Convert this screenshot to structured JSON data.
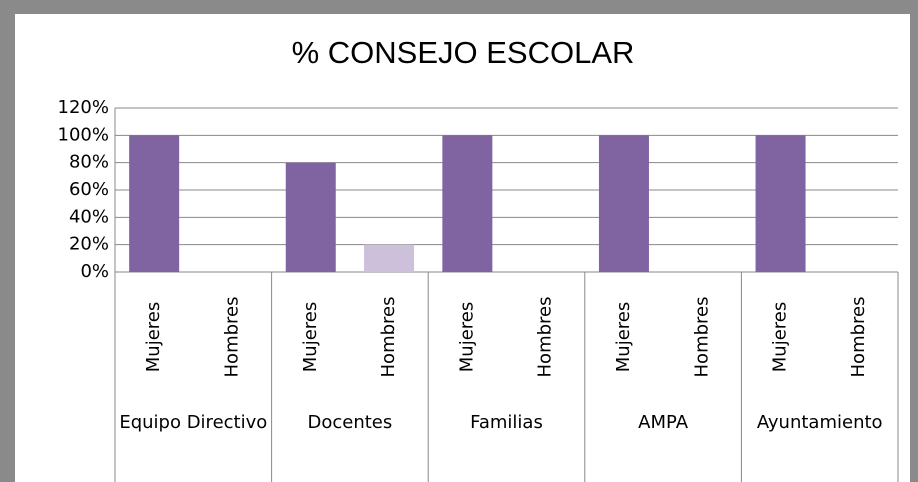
{
  "chart_data": {
    "type": "bar",
    "title": "% CONSEJO ESCOLAR",
    "groups": [
      {
        "name": "Equipo Directivo",
        "categories": [
          "Mujeres",
          "Hombres"
        ],
        "values": [
          100,
          0
        ]
      },
      {
        "name": "Docentes",
        "categories": [
          "Mujeres",
          "Hombres"
        ],
        "values": [
          80,
          20
        ]
      },
      {
        "name": "Familias",
        "categories": [
          "Mujeres",
          "Hombres"
        ],
        "values": [
          100,
          0
        ]
      },
      {
        "name": "AMPA",
        "categories": [
          "Mujeres",
          "Hombres"
        ],
        "values": [
          100,
          0
        ]
      },
      {
        "name": "Ayuntamiento",
        "categories": [
          "Mujeres",
          "Hombres"
        ],
        "values": [
          100,
          0
        ]
      }
    ],
    "colors": [
      "#8064a2",
      "#ccc0da"
    ],
    "ylim": [
      0,
      120
    ],
    "yticks": [
      {
        "value": 0,
        "label": "0%"
      },
      {
        "value": 20,
        "label": "20%"
      },
      {
        "value": 40,
        "label": "40%"
      },
      {
        "value": 60,
        "label": "60%"
      },
      {
        "value": 80,
        "label": "80%"
      },
      {
        "value": 100,
        "label": "100%"
      },
      {
        "value": 120,
        "label": "120%"
      }
    ],
    "grid": true
  }
}
